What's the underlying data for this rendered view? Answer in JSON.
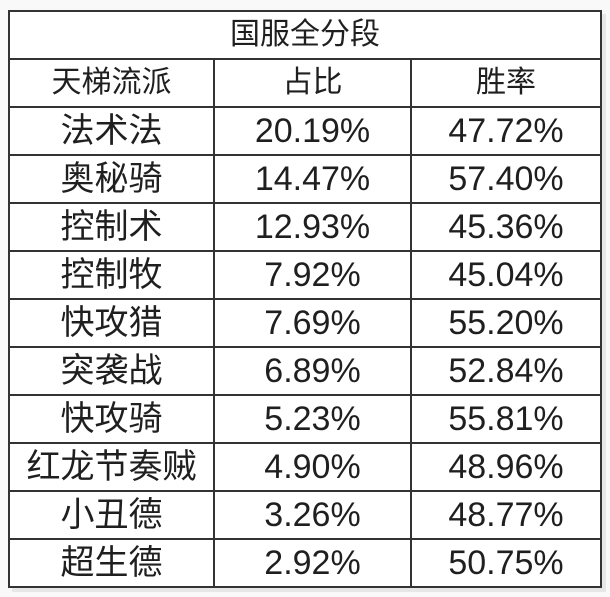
{
  "colors": {
    "text": "#1f1f1f",
    "border": "#333333",
    "cell_background": "#ffffff",
    "page_background": "#f9f9f9"
  },
  "chart_data": {
    "type": "table",
    "title": "国服全分段",
    "columns": [
      "天梯流派",
      "占比",
      "胜率"
    ],
    "rows": [
      [
        "法术法",
        "20.19%",
        "47.72%"
      ],
      [
        "奥秘骑",
        "14.47%",
        "57.40%"
      ],
      [
        "控制术",
        "12.93%",
        "45.36%"
      ],
      [
        "控制牧",
        "7.92%",
        "45.04%"
      ],
      [
        "快攻猎",
        "7.69%",
        "55.20%"
      ],
      [
        "突袭战",
        "6.89%",
        "52.84%"
      ],
      [
        "快攻骑",
        "5.23%",
        "55.81%"
      ],
      [
        "红龙节奏贼",
        "4.90%",
        "48.96%"
      ],
      [
        "小丑德",
        "3.26%",
        "48.77%"
      ],
      [
        "超生德",
        "2.92%",
        "50.75%"
      ]
    ]
  }
}
